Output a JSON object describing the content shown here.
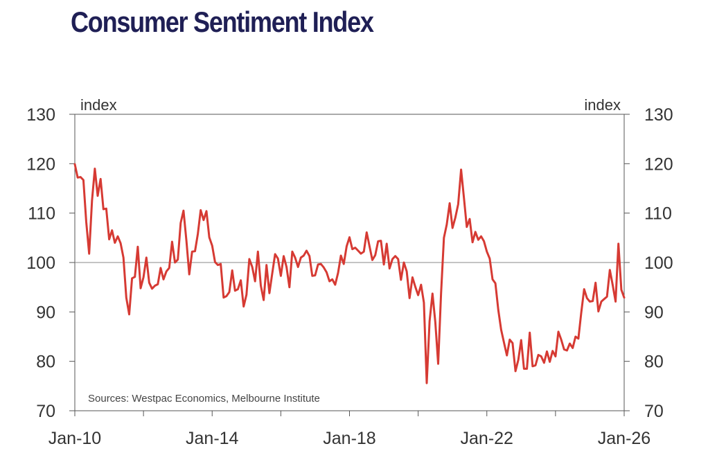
{
  "title": "Consumer Sentiment Index",
  "chart_data": {
    "type": "line",
    "xlabel": "",
    "ylabel": "index",
    "ylabel_right": "index",
    "ylim": [
      70,
      130
    ],
    "yticks": [
      70,
      80,
      90,
      100,
      110,
      120,
      130
    ],
    "xticks": [
      "Jan-10",
      "Jan-14",
      "Jan-18",
      "Jan-22",
      "Jan-26"
    ],
    "xlim": [
      "2010-01",
      "2026-01"
    ],
    "reference_line": 100,
    "source_note": "Sources: Westpac Economics, Melbourne Institute",
    "colors": {
      "series": "#d63a33",
      "axis": "#555555",
      "title": "#1f1f55"
    },
    "series": [
      {
        "name": "",
        "color": "#d63a33",
        "points": [
          [
            "2010-01",
            119.9
          ],
          [
            "2010-02",
            117.2
          ],
          [
            "2010-03",
            117.3
          ],
          [
            "2010-04",
            116.7
          ],
          [
            "2010-05",
            108.2
          ],
          [
            "2010-06",
            101.8
          ],
          [
            "2010-07",
            112.5
          ],
          [
            "2010-08",
            119.0
          ],
          [
            "2010-09",
            113.5
          ],
          [
            "2010-10",
            116.9
          ],
          [
            "2010-11",
            110.8
          ],
          [
            "2010-12",
            110.9
          ],
          [
            "2011-01",
            104.7
          ],
          [
            "2011-02",
            106.5
          ],
          [
            "2011-03",
            104.0
          ],
          [
            "2011-04",
            105.3
          ],
          [
            "2011-05",
            103.9
          ],
          [
            "2011-06",
            101.0
          ],
          [
            "2011-07",
            92.9
          ],
          [
            "2011-08",
            89.5
          ],
          [
            "2011-09",
            96.8
          ],
          [
            "2011-10",
            97.1
          ],
          [
            "2011-11",
            103.2
          ],
          [
            "2011-12",
            94.8
          ],
          [
            "2012-01",
            97.0
          ],
          [
            "2012-02",
            101.0
          ],
          [
            "2012-03",
            95.9
          ],
          [
            "2012-04",
            94.7
          ],
          [
            "2012-05",
            95.3
          ],
          [
            "2012-06",
            95.6
          ],
          [
            "2012-07",
            98.9
          ],
          [
            "2012-08",
            96.6
          ],
          [
            "2012-09",
            98.2
          ],
          [
            "2012-10",
            98.9
          ],
          [
            "2012-11",
            104.2
          ],
          [
            "2012-12",
            100.0
          ],
          [
            "2013-01",
            100.6
          ],
          [
            "2013-02",
            108.0
          ],
          [
            "2013-03",
            110.5
          ],
          [
            "2013-04",
            104.4
          ],
          [
            "2013-05",
            97.6
          ],
          [
            "2013-06",
            102.2
          ],
          [
            "2013-07",
            102.3
          ],
          [
            "2013-08",
            105.8
          ],
          [
            "2013-09",
            110.6
          ],
          [
            "2013-10",
            108.6
          ],
          [
            "2013-11",
            110.4
          ],
          [
            "2013-12",
            105.1
          ],
          [
            "2014-01",
            103.4
          ],
          [
            "2014-02",
            100.1
          ],
          [
            "2014-03",
            99.5
          ],
          [
            "2014-04",
            99.7
          ],
          [
            "2014-05",
            92.9
          ],
          [
            "2014-06",
            93.2
          ],
          [
            "2014-07",
            94.0
          ],
          [
            "2014-08",
            98.4
          ],
          [
            "2014-09",
            94.3
          ],
          [
            "2014-10",
            94.6
          ],
          [
            "2014-11",
            96.4
          ],
          [
            "2014-12",
            91.1
          ],
          [
            "2015-01",
            93.5
          ],
          [
            "2015-02",
            100.7
          ],
          [
            "2015-03",
            99.1
          ],
          [
            "2015-04",
            96.2
          ],
          [
            "2015-05",
            102.2
          ],
          [
            "2015-06",
            95.3
          ],
          [
            "2015-07",
            92.4
          ],
          [
            "2015-08",
            99.5
          ],
          [
            "2015-09",
            93.8
          ],
          [
            "2015-10",
            97.8
          ],
          [
            "2015-11",
            101.7
          ],
          [
            "2015-12",
            100.8
          ],
          [
            "2016-01",
            97.3
          ],
          [
            "2016-02",
            101.3
          ],
          [
            "2016-03",
            99.1
          ],
          [
            "2016-04",
            95.0
          ],
          [
            "2016-05",
            102.2
          ],
          [
            "2016-06",
            101.0
          ],
          [
            "2016-07",
            99.1
          ],
          [
            "2016-08",
            101.0
          ],
          [
            "2016-09",
            101.4
          ],
          [
            "2016-10",
            102.4
          ],
          [
            "2016-11",
            101.3
          ],
          [
            "2016-12",
            97.3
          ],
          [
            "2017-01",
            97.4
          ],
          [
            "2017-02",
            99.6
          ],
          [
            "2017-03",
            99.7
          ],
          [
            "2017-04",
            99.0
          ],
          [
            "2017-05",
            98.0
          ],
          [
            "2017-06",
            96.2
          ],
          [
            "2017-07",
            96.6
          ],
          [
            "2017-08",
            95.5
          ],
          [
            "2017-09",
            97.9
          ],
          [
            "2017-10",
            101.4
          ],
          [
            "2017-11",
            99.7
          ],
          [
            "2017-12",
            103.3
          ],
          [
            "2018-01",
            105.1
          ],
          [
            "2018-02",
            102.7
          ],
          [
            "2018-03",
            103.0
          ],
          [
            "2018-04",
            102.4
          ],
          [
            "2018-05",
            101.8
          ],
          [
            "2018-06",
            102.2
          ],
          [
            "2018-07",
            106.1
          ],
          [
            "2018-08",
            103.3
          ],
          [
            "2018-09",
            100.5
          ],
          [
            "2018-10",
            101.5
          ],
          [
            "2018-11",
            104.3
          ],
          [
            "2018-12",
            104.4
          ],
          [
            "2019-01",
            99.6
          ],
          [
            "2019-02",
            103.8
          ],
          [
            "2019-03",
            98.8
          ],
          [
            "2019-04",
            100.7
          ],
          [
            "2019-05",
            101.3
          ],
          [
            "2019-06",
            100.7
          ],
          [
            "2019-07",
            96.5
          ],
          [
            "2019-08",
            100.0
          ],
          [
            "2019-09",
            98.2
          ],
          [
            "2019-10",
            92.8
          ],
          [
            "2019-11",
            97.0
          ],
          [
            "2019-12",
            95.1
          ],
          [
            "2020-01",
            93.4
          ],
          [
            "2020-02",
            95.5
          ],
          [
            "2020-03",
            91.9
          ],
          [
            "2020-04",
            75.6
          ],
          [
            "2020-05",
            88.1
          ],
          [
            "2020-06",
            93.7
          ],
          [
            "2020-07",
            87.9
          ],
          [
            "2020-08",
            79.5
          ],
          [
            "2020-09",
            93.8
          ],
          [
            "2020-10",
            105.0
          ],
          [
            "2020-11",
            107.7
          ],
          [
            "2020-12",
            112.0
          ],
          [
            "2021-01",
            107.0
          ],
          [
            "2021-02",
            109.1
          ],
          [
            "2021-03",
            111.8
          ],
          [
            "2021-04",
            118.8
          ],
          [
            "2021-05",
            113.1
          ],
          [
            "2021-06",
            107.2
          ],
          [
            "2021-07",
            108.8
          ],
          [
            "2021-08",
            104.1
          ],
          [
            "2021-09",
            106.2
          ],
          [
            "2021-10",
            104.6
          ],
          [
            "2021-11",
            105.3
          ],
          [
            "2021-12",
            104.3
          ],
          [
            "2022-01",
            102.2
          ],
          [
            "2022-02",
            100.8
          ],
          [
            "2022-03",
            96.6
          ],
          [
            "2022-04",
            95.8
          ],
          [
            "2022-05",
            90.4
          ],
          [
            "2022-06",
            86.4
          ],
          [
            "2022-07",
            83.8
          ],
          [
            "2022-08",
            81.2
          ],
          [
            "2022-09",
            84.4
          ],
          [
            "2022-10",
            83.7
          ],
          [
            "2022-11",
            78.0
          ],
          [
            "2022-12",
            80.3
          ],
          [
            "2023-01",
            84.3
          ],
          [
            "2023-02",
            78.5
          ],
          [
            "2023-03",
            78.5
          ],
          [
            "2023-04",
            85.8
          ],
          [
            "2023-05",
            79.0
          ],
          [
            "2023-06",
            79.2
          ],
          [
            "2023-07",
            81.3
          ],
          [
            "2023-08",
            81.0
          ],
          [
            "2023-09",
            79.7
          ],
          [
            "2023-10",
            82.0
          ],
          [
            "2023-11",
            79.9
          ],
          [
            "2023-12",
            82.1
          ],
          [
            "2024-01",
            81.0
          ],
          [
            "2024-02",
            86.0
          ],
          [
            "2024-03",
            84.4
          ],
          [
            "2024-04",
            82.4
          ],
          [
            "2024-05",
            82.2
          ],
          [
            "2024-06",
            83.6
          ],
          [
            "2024-07",
            82.7
          ],
          [
            "2024-08",
            85.0
          ],
          [
            "2024-09",
            84.6
          ],
          [
            "2024-10",
            89.8
          ],
          [
            "2024-11",
            94.6
          ],
          [
            "2024-12",
            92.8
          ],
          [
            "2025-01",
            92.1
          ],
          [
            "2025-02",
            92.2
          ],
          [
            "2025-03",
            95.9
          ],
          [
            "2025-04",
            90.1
          ],
          [
            "2025-05",
            92.1
          ],
          [
            "2025-06",
            92.6
          ],
          [
            "2025-07",
            93.1
          ],
          [
            "2025-08",
            98.5
          ],
          [
            "2025-09",
            95.4
          ],
          [
            "2025-10",
            92.1
          ],
          [
            "2025-11",
            103.8
          ],
          [
            "2025-12",
            94.5
          ],
          [
            "2026-01",
            92.9
          ]
        ]
      }
    ]
  }
}
